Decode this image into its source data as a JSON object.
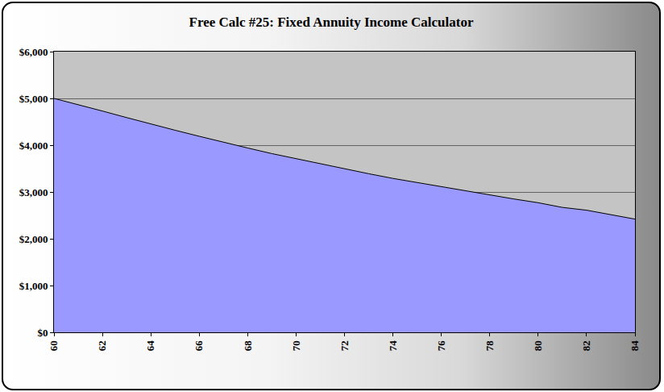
{
  "chart_data": {
    "type": "area",
    "title": "Free Calc #25: Fixed Annuity Income Calculator",
    "x": [
      60,
      61,
      62,
      63,
      64,
      65,
      66,
      67,
      68,
      69,
      70,
      71,
      72,
      73,
      74,
      75,
      76,
      77,
      78,
      79,
      80,
      81,
      82,
      83,
      84
    ],
    "values": [
      5000,
      4870,
      4730,
      4590,
      4450,
      4320,
      4190,
      4060,
      3940,
      3820,
      3710,
      3600,
      3490,
      3390,
      3290,
      3200,
      3110,
      3020,
      2930,
      2850,
      2770,
      2670,
      2610,
      2520,
      2420
    ],
    "color": "#9999ff",
    "xlim": [
      60,
      84
    ],
    "xticks": [
      60,
      62,
      64,
      66,
      68,
      70,
      72,
      74,
      76,
      78,
      80,
      82,
      84
    ],
    "ylim": [
      0,
      6000
    ],
    "yticks": [
      {
        "value": 0,
        "label": "$0"
      },
      {
        "value": 1000,
        "label": "$1,000"
      },
      {
        "value": 2000,
        "label": "$2,000"
      },
      {
        "value": 3000,
        "label": "$3,000"
      },
      {
        "value": 4000,
        "label": "$4,000"
      },
      {
        "value": 5000,
        "label": "$5,000"
      },
      {
        "value": 6000,
        "label": "$6,000"
      }
    ],
    "grid": true
  }
}
